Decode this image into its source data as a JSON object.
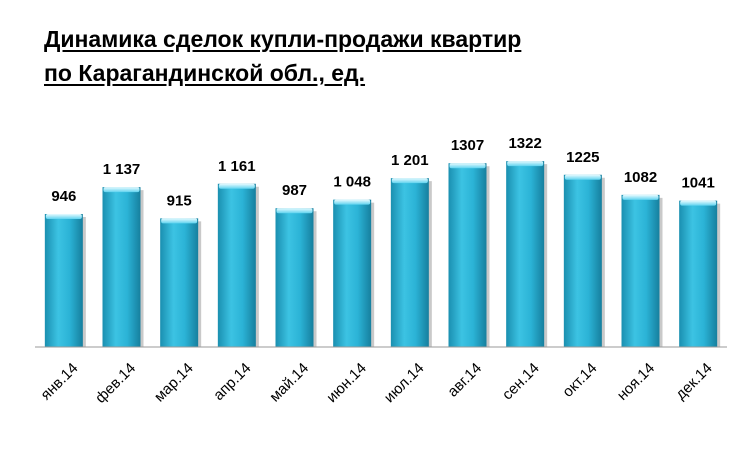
{
  "chart_data": {
    "type": "bar",
    "title_line1": "Динамика сделок купли-продажи квартир",
    "title_line2": "по Карагандинской обл., ед.",
    "categories": [
      "янв.14",
      "фев.14",
      "мар.14",
      "апр.14",
      "май.14",
      "июн.14",
      "июл.14",
      "авг.14",
      "сен.14",
      "окт.14",
      "ноя.14",
      "дек.14"
    ],
    "values": [
      946,
      1137,
      915,
      1161,
      987,
      1048,
      1201,
      1307,
      1322,
      1225,
      1082,
      1041
    ],
    "value_labels": [
      "946",
      "1 137",
      "915",
      "1 161",
      "987",
      "1 048",
      "1 201",
      "1307",
      "1322",
      "1225",
      "1082",
      "1041"
    ],
    "ylim": [
      0,
      1400
    ],
    "bar_color": "#2bb3d6"
  }
}
